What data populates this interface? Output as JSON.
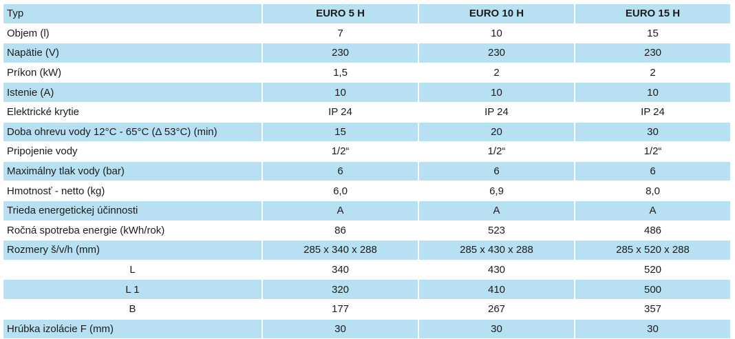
{
  "header": {
    "label": "Typ",
    "models": [
      "EURO 5 H",
      "EURO 10 H",
      "EURO 15 H"
    ]
  },
  "rows": [
    {
      "label": "Objem  (l)",
      "values": [
        "7",
        "10",
        "15"
      ]
    },
    {
      "label": "Napätie  (V)",
      "values": [
        "230",
        "230",
        "230"
      ]
    },
    {
      "label": "Príkon  (kW)",
      "values": [
        "1,5",
        "2",
        "2"
      ]
    },
    {
      "label": "Istenie  (A)",
      "values": [
        "10",
        "10",
        "10"
      ]
    },
    {
      "label": "Elektrické krytie",
      "values": [
        "IP 24",
        "IP 24",
        "IP 24"
      ]
    },
    {
      "label": "Doba ohrevu vody 12°C - 65°C  (Δ 53°C)  (min)",
      "values": [
        "15",
        "20",
        "30"
      ]
    },
    {
      "label": "Pripojenie vody",
      "values": [
        "1/2“",
        "1/2“",
        "1/2“"
      ]
    },
    {
      "label": "Maximálny tlak vody  (bar)",
      "values": [
        "6",
        "6",
        "6"
      ]
    },
    {
      "label": "Hmotnosť  - netto  (kg)",
      "values": [
        "6,0",
        "6,9",
        "8,0"
      ]
    },
    {
      "label": "Trieda energetickej účinnosti",
      "values": [
        "A",
        "A",
        "A"
      ]
    },
    {
      "label": "Ročná spotreba energie  (kWh/rok)",
      "values": [
        "86",
        "523",
        "486"
      ]
    },
    {
      "label": "Rozmery   š/v/h   (mm)",
      "values": [
        "285 x 340 x 288",
        "285 x 430 x 288",
        "285 x 520 x 288"
      ]
    },
    {
      "label": "L",
      "values": [
        "340",
        "430",
        "520"
      ]
    },
    {
      "label": "L 1",
      "values": [
        "320",
        "410",
        "500"
      ]
    },
    {
      "label": "B",
      "values": [
        "177",
        "267",
        "357"
      ]
    },
    {
      "label": "Hrúbka izolácie  F  (mm)",
      "values": [
        "30",
        "30",
        "30"
      ]
    }
  ]
}
